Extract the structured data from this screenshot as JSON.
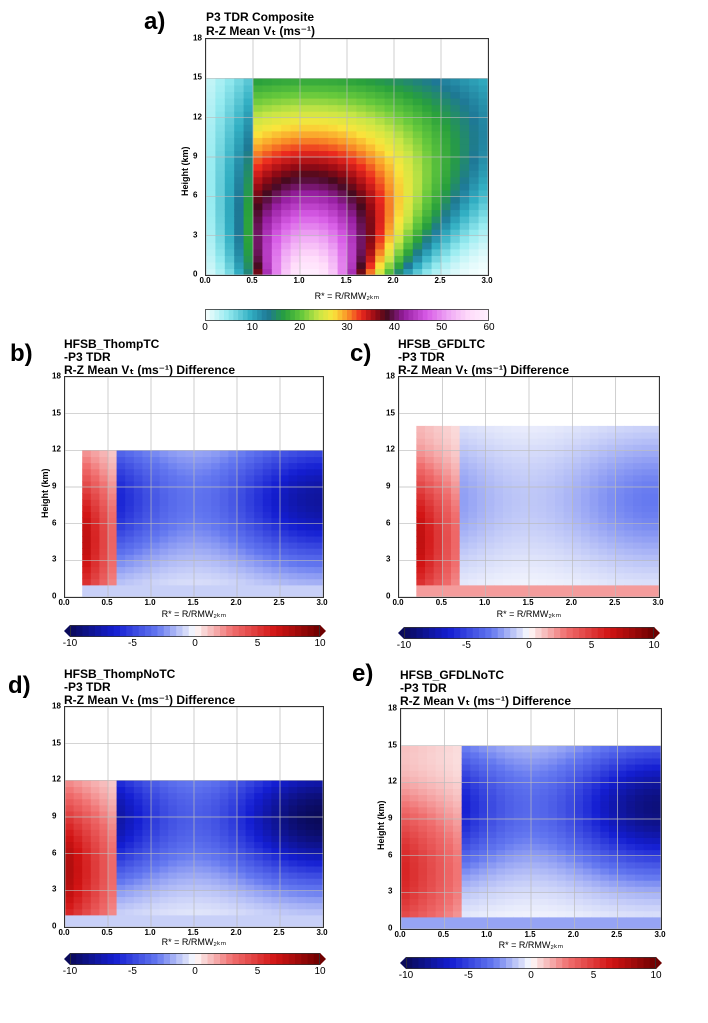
{
  "panels": [
    {
      "letter": "a)",
      "title_lines": [
        "P3 TDR Composite",
        "R-Z Mean Vₜ (ms⁻¹)"
      ],
      "ylabel": "Height (km)",
      "xlabel": "R* = R/RMW₂ₖₘ",
      "xticks": [
        "0.0",
        "0.5",
        "1.0",
        "1.5",
        "2.0",
        "2.5",
        "3.0"
      ],
      "yticks": [
        "0",
        "3",
        "6",
        "9",
        "12",
        "15",
        "18"
      ],
      "colorbar_ticks": [
        "0",
        "10",
        "20",
        "30",
        "40",
        "50",
        "60"
      ]
    },
    {
      "letter": "b)",
      "title_lines": [
        "HFSB_ThompTC",
        "-P3 TDR",
        "R-Z Mean Vₜ (ms⁻¹) Difference"
      ],
      "ylabel": "Height (km)",
      "xlabel": "R* = R/RMW₂ₖₘ",
      "xticks": [
        "0.0",
        "0.5",
        "1.0",
        "1.5",
        "2.0",
        "2.5",
        "3.0"
      ],
      "yticks": [
        "0",
        "3",
        "6",
        "9",
        "12",
        "15",
        "18"
      ],
      "colorbar_ticks": [
        "-10",
        "-5",
        "0",
        "5",
        "10"
      ]
    },
    {
      "letter": "c)",
      "title_lines": [
        "HFSB_GFDLTC",
        "-P3 TDR",
        "R-Z Mean Vₜ (ms⁻¹) Difference"
      ],
      "ylabel": "",
      "xlabel": "R* = R/RMW₂ₖₘ",
      "xticks": [
        "0.0",
        "0.5",
        "1.0",
        "1.5",
        "2.0",
        "2.5",
        "3.0"
      ],
      "yticks": [
        "0",
        "3",
        "6",
        "9",
        "12",
        "15",
        "18"
      ],
      "colorbar_ticks": [
        "-10",
        "-5",
        "0",
        "5",
        "10"
      ]
    },
    {
      "letter": "d)",
      "title_lines": [
        "HFSB_ThompNoTC",
        "-P3 TDR",
        "R-Z Mean Vₜ (ms⁻¹) Difference"
      ],
      "ylabel": "",
      "xlabel": "R* = R/RMW₂ₖₘ",
      "xticks": [
        "0.0",
        "0.5",
        "1.0",
        "1.5",
        "2.0",
        "2.5",
        "3.0"
      ],
      "yticks": [
        "0",
        "3",
        "6",
        "9",
        "12",
        "15",
        "18"
      ],
      "colorbar_ticks": [
        "-10",
        "-5",
        "0",
        "5",
        "10"
      ]
    },
    {
      "letter": "e)",
      "title_lines": [
        "HFSB_GFDLNoTC",
        "-P3 TDR",
        "R-Z Mean Vₜ (ms⁻¹) Difference"
      ],
      "ylabel": "Height (km)",
      "xlabel": "R* = R/RMW₂ₖₘ",
      "xticks": [
        "0.0",
        "0.5",
        "1.0",
        "1.5",
        "2.0",
        "2.5",
        "3.0"
      ],
      "yticks": [
        "0",
        "3",
        "6",
        "9",
        "12",
        "15",
        "18"
      ],
      "colorbar_ticks": [
        "-10",
        "-5",
        "0",
        "5",
        "10"
      ]
    }
  ],
  "chart_data": [
    {
      "type": "heatmap",
      "title": "P3 TDR Composite R-Z Mean Vt (ms-1)",
      "xlabel": "R* = R/RMW2km",
      "ylabel": "Height (km)",
      "xlim": [
        0,
        3
      ],
      "ylim": [
        0,
        18
      ],
      "grid": true,
      "colorbar": {
        "range": [
          0,
          60
        ],
        "ticks": [
          0,
          10,
          20,
          30,
          40,
          50,
          60
        ],
        "colormap": "cyan-green-yellow-red-magenta"
      },
      "field": {
        "kind": "composite",
        "peak_value": 60,
        "peak_r": 1.1,
        "peak_z": 1.5,
        "top_km": 15,
        "data_start_r": 0.05
      }
    },
    {
      "type": "heatmap",
      "title": "HFSB_ThompTC -P3 TDR R-Z Mean Vt (ms-1) Difference",
      "xlabel": "R* = R/RMW2km",
      "ylabel": "Height (km)",
      "xlim": [
        0,
        3
      ],
      "ylim": [
        0,
        18
      ],
      "grid": true,
      "colorbar": {
        "range": [
          -10,
          10
        ],
        "ticks": [
          -10,
          -5,
          0,
          5,
          10
        ],
        "colormap": "seismic"
      },
      "field": {
        "kind": "diff",
        "top_km": 12,
        "data_start_r": 0.25,
        "inner_pos": 7,
        "inner_r_end": 0.6,
        "core_neg": -8,
        "core_z": 8,
        "boundary_neg": -1
      }
    },
    {
      "type": "heatmap",
      "title": "HFSB_GFDLTC -P3 TDR R-Z Mean Vt (ms-1) Difference",
      "xlabel": "R* = R/RMW2km",
      "ylabel": "",
      "xlim": [
        0,
        3
      ],
      "ylim": [
        0,
        18
      ],
      "grid": true,
      "colorbar": {
        "range": [
          -10,
          10
        ],
        "ticks": [
          -10,
          -5,
          0,
          5,
          10
        ],
        "colormap": "seismic"
      },
      "field": {
        "kind": "diff",
        "top_km": 14,
        "data_start_r": 0.25,
        "inner_pos": 7,
        "inner_r_end": 0.7,
        "core_neg": -3,
        "core_z": 8,
        "boundary_neg": 2
      }
    },
    {
      "type": "heatmap",
      "title": "HFSB_ThompNoTC -P3 TDR R-Z Mean Vt (ms-1) Difference",
      "xlabel": "R* = R/RMW2km",
      "ylabel": "",
      "xlim": [
        0,
        3
      ],
      "ylim": [
        0,
        18
      ],
      "grid": true,
      "colorbar": {
        "range": [
          -10,
          10
        ],
        "ticks": [
          -10,
          -5,
          0,
          5,
          10
        ],
        "colormap": "seismic"
      },
      "field": {
        "kind": "diff",
        "top_km": 12,
        "data_start_r": 0.0,
        "inner_pos": 8,
        "inner_r_end": 0.55,
        "core_neg": -10,
        "core_z": 9,
        "boundary_neg": -1
      }
    },
    {
      "type": "heatmap",
      "title": "HFSB_GFDLNoTC -P3 TDR R-Z Mean Vt (ms-1) Difference",
      "xlabel": "R* = R/RMW2km",
      "ylabel": "Height (km)",
      "xlim": [
        0,
        3
      ],
      "ylim": [
        0,
        18
      ],
      "grid": true,
      "colorbar": {
        "range": [
          -10,
          10
        ],
        "ticks": [
          -10,
          -5,
          0,
          5,
          10
        ],
        "colormap": "seismic"
      },
      "field": {
        "kind": "diff",
        "top_km": 15,
        "data_start_r": 0.0,
        "inner_pos": 6,
        "inner_r_end": 0.75,
        "core_neg": -9,
        "core_z": 10,
        "boundary_neg": -2
      }
    }
  ]
}
